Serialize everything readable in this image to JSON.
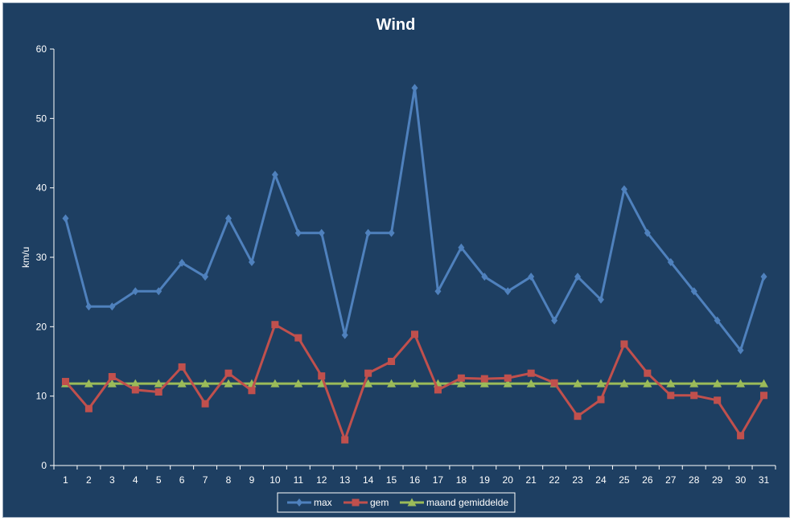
{
  "chart_data": {
    "type": "line",
    "title": "Wind",
    "xlabel": "",
    "ylabel": "km/u",
    "ylim": [
      0,
      60
    ],
    "yticks": [
      0,
      10,
      20,
      30,
      40,
      50,
      60
    ],
    "grid": false,
    "legend_position": "bottom",
    "categories": [
      "1",
      "2",
      "3",
      "4",
      "5",
      "6",
      "7",
      "8",
      "9",
      "10",
      "11",
      "12",
      "13",
      "14",
      "15",
      "16",
      "17",
      "18",
      "19",
      "20",
      "21",
      "22",
      "23",
      "24",
      "25",
      "26",
      "27",
      "28",
      "29",
      "30",
      "31"
    ],
    "series": [
      {
        "name": "max",
        "color": "#4f81bd",
        "marker": "diamond",
        "values": [
          35.6,
          22.9,
          22.9,
          25.1,
          25.1,
          29.2,
          27.2,
          35.6,
          29.3,
          41.9,
          33.5,
          33.5,
          18.8,
          33.5,
          33.5,
          54.4,
          25.1,
          31.4,
          27.2,
          25.1,
          27.2,
          20.9,
          27.2,
          23.9,
          39.8,
          33.5,
          29.3,
          25.1,
          20.9,
          16.6,
          27.2
        ]
      },
      {
        "name": "gem",
        "color": "#c0504d",
        "marker": "square",
        "values": [
          12.1,
          8.2,
          12.8,
          10.9,
          10.6,
          14.2,
          8.9,
          13.3,
          10.8,
          20.3,
          18.4,
          12.9,
          3.7,
          13.3,
          15.0,
          18.9,
          10.9,
          12.6,
          12.5,
          12.6,
          13.3,
          11.9,
          7.1,
          9.5,
          17.5,
          13.3,
          10.1,
          10.1,
          9.4,
          4.3,
          10.1
        ]
      },
      {
        "name": "maand gemiddelde",
        "color": "#9bbb59",
        "marker": "triangle",
        "values": [
          11.8,
          11.8,
          11.8,
          11.8,
          11.8,
          11.8,
          11.8,
          11.8,
          11.8,
          11.8,
          11.8,
          11.8,
          11.8,
          11.8,
          11.8,
          11.8,
          11.8,
          11.8,
          11.8,
          11.8,
          11.8,
          11.8,
          11.8,
          11.8,
          11.8,
          11.8,
          11.8,
          11.8,
          11.8,
          11.8,
          11.8
        ]
      }
    ]
  }
}
